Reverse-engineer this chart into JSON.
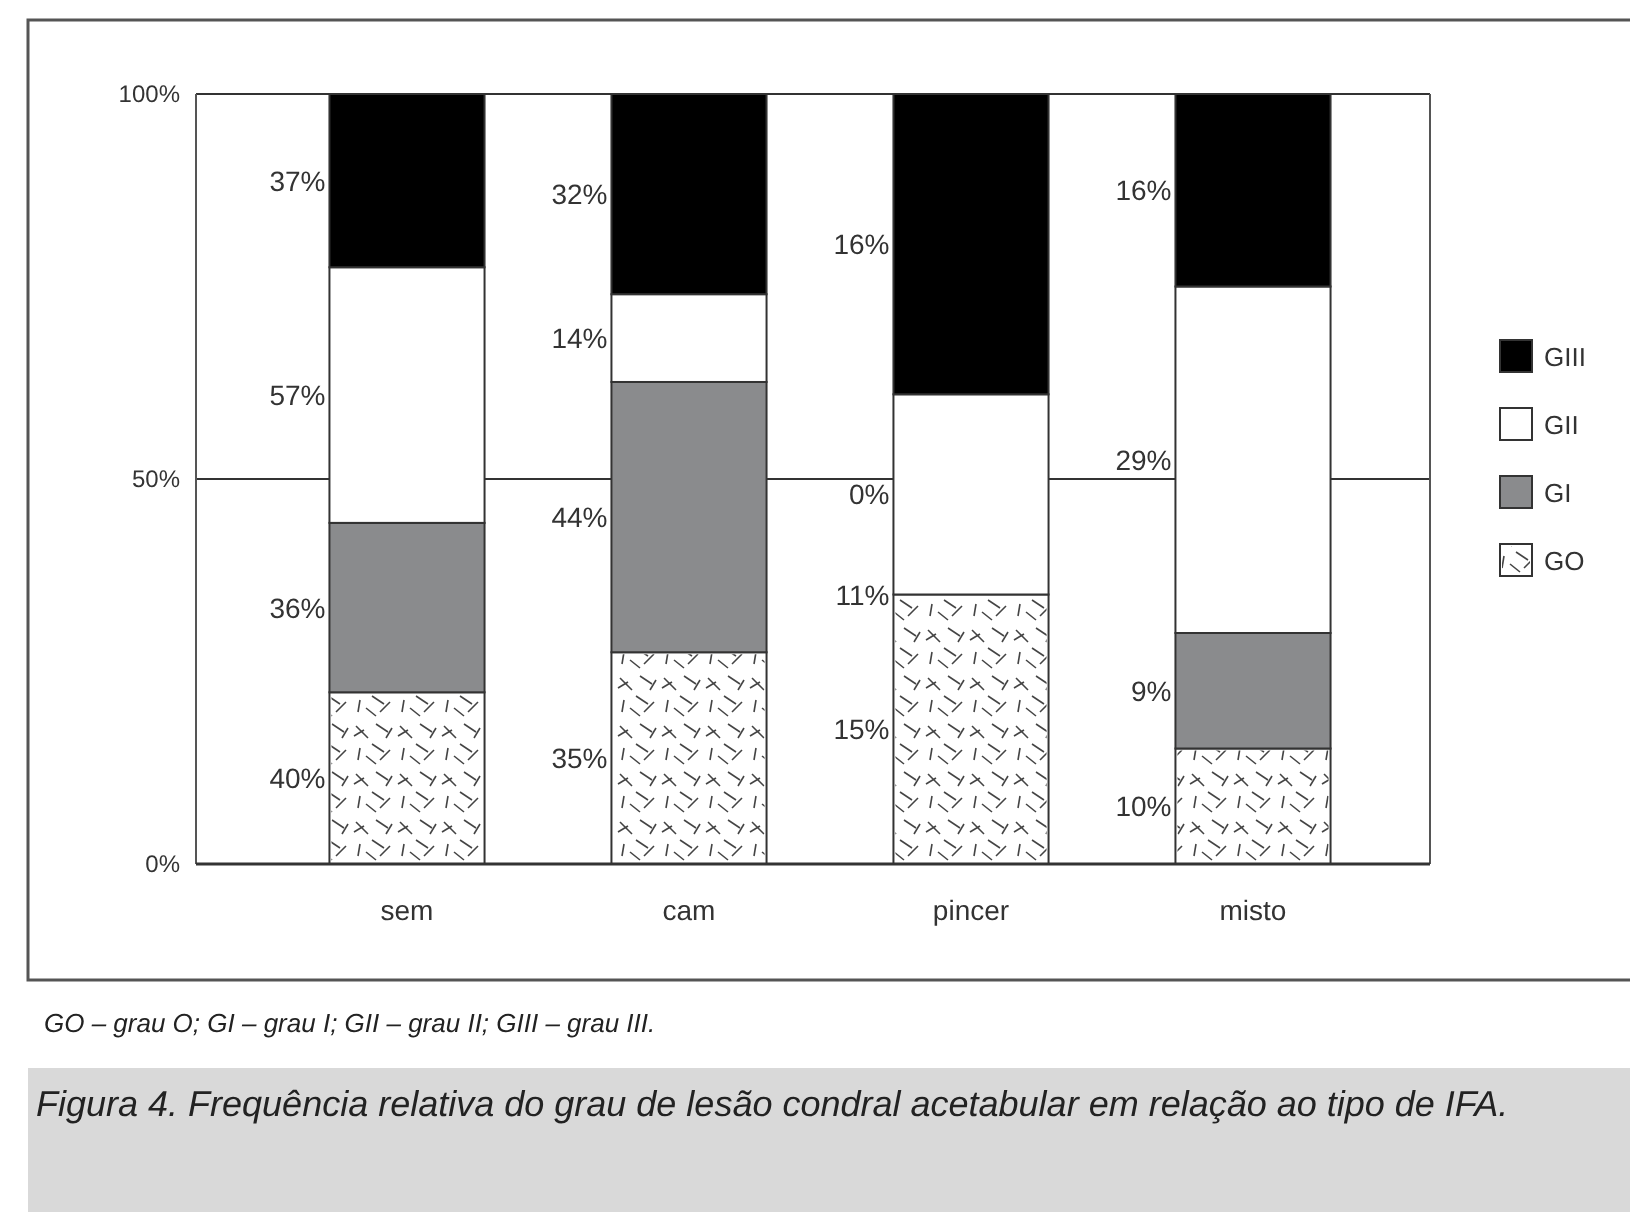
{
  "chart_data": {
    "type": "bar",
    "stacked": true,
    "title": "Figura 4. Frequência relativa do grau de lesão condral acetabular em relação ao tipo de IFA.",
    "categories": [
      "sem",
      "cam",
      "pincer",
      "misto"
    ],
    "series": [
      {
        "name": "GO",
        "color": "#ffffff",
        "values": [
          22.3,
          27.5,
          35,
          15
        ]
      },
      {
        "name": "GI",
        "color": "#8a8b8d",
        "values": [
          22,
          35.1,
          0,
          15
        ]
      },
      {
        "name": "GII",
        "color": "#ffffff",
        "values": [
          33.2,
          11.4,
          26,
          45
        ]
      },
      {
        "name": "GIII",
        "color": "#000000",
        "values": [
          22.5,
          26,
          39,
          25
        ]
      }
    ],
    "ylim": [
      0,
      100
    ],
    "yticks": [
      {
        "value": 0,
        "label": "0%"
      },
      {
        "value": 50,
        "label": "50%"
      },
      {
        "value": 100,
        "label": "100%"
      }
    ],
    "grid": "y",
    "legend": "right",
    "annotations": [
      "40%",
      "36%",
      "57%",
      "37%",
      "35%",
      "44%",
      "14%",
      "32%",
      "15%",
      "11%",
      "0%",
      "16%",
      "10%",
      "9%",
      "29%",
      "16%",
      "GO – grau O; GI – grau I; GII – grau II; GIII – grau III."
    ]
  }
}
